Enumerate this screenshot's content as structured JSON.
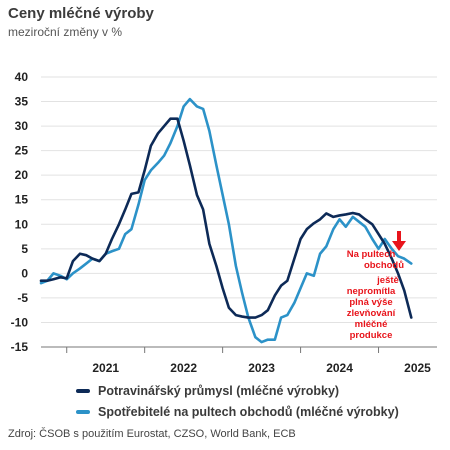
{
  "title": "Ceny mléčné výroby",
  "subtitle": "meziroční změny v %",
  "source": "Zdroj: ČSOB s použitím Eurostat, CZSO, World Bank, ECB",
  "annotation": [
    "Na pultech",
    "obchodů",
    "ještě",
    "nepromítla",
    "plná výše",
    "zlevňování",
    "mléčné",
    "produkce"
  ],
  "colors": {
    "series1": "#0d2a57",
    "series2": "#2c92c8",
    "annotation": "#e8141b"
  },
  "chart_data": {
    "type": "line",
    "ylim": [
      -15,
      40
    ],
    "yticks": [
      "-15",
      "-10",
      "-5",
      "0",
      "5",
      "10",
      "15",
      "20",
      "25",
      "30",
      "35",
      "40"
    ],
    "xtick_labels": [
      "2021",
      "2022",
      "2023",
      "2024",
      "2025"
    ],
    "x_unit": "year",
    "xlim": [
      2020.67,
      2025.75
    ],
    "grid": "horizontal",
    "legend_position": "bottom",
    "series": [
      {
        "name": "Potravinářský průmysl (mléčné výrobky)",
        "color": "#0d2a57",
        "points": [
          [
            2020.67,
            -1.5
          ],
          [
            2020.75,
            -1.5
          ],
          [
            2020.83,
            -1.2
          ],
          [
            2020.92,
            -0.8
          ],
          [
            2021.0,
            -1.0
          ],
          [
            2021.08,
            2.5
          ],
          [
            2021.17,
            4.0
          ],
          [
            2021.25,
            3.7
          ],
          [
            2021.33,
            3.0
          ],
          [
            2021.42,
            2.5
          ],
          [
            2021.5,
            4.0
          ],
          [
            2021.58,
            7.0
          ],
          [
            2021.67,
            10.0
          ],
          [
            2021.75,
            13.0
          ],
          [
            2021.83,
            16.2
          ],
          [
            2021.92,
            16.5
          ],
          [
            2022.0,
            21.0
          ],
          [
            2022.08,
            26.0
          ],
          [
            2022.17,
            28.5
          ],
          [
            2022.25,
            30.0
          ],
          [
            2022.33,
            31.5
          ],
          [
            2022.42,
            31.5
          ],
          [
            2022.5,
            27.0
          ],
          [
            2022.58,
            22.0
          ],
          [
            2022.67,
            16.0
          ],
          [
            2022.75,
            13.0
          ],
          [
            2022.83,
            6.0
          ],
          [
            2022.92,
            1.5
          ],
          [
            2023.0,
            -3.0
          ],
          [
            2023.08,
            -7.0
          ],
          [
            2023.17,
            -8.5
          ],
          [
            2023.25,
            -8.8
          ],
          [
            2023.33,
            -9.0
          ],
          [
            2023.42,
            -9.0
          ],
          [
            2023.5,
            -8.5
          ],
          [
            2023.58,
            -7.5
          ],
          [
            2023.67,
            -4.5
          ],
          [
            2023.75,
            -2.5
          ],
          [
            2023.83,
            -1.5
          ],
          [
            2023.92,
            3.0
          ],
          [
            2024.0,
            7.0
          ],
          [
            2024.08,
            9.0
          ],
          [
            2024.17,
            10.2
          ],
          [
            2024.25,
            11.0
          ],
          [
            2024.33,
            12.2
          ],
          [
            2024.42,
            11.5
          ],
          [
            2024.5,
            11.8
          ],
          [
            2024.58,
            12.0
          ],
          [
            2024.67,
            12.3
          ],
          [
            2024.75,
            12.0
          ],
          [
            2024.83,
            11.0
          ],
          [
            2024.92,
            10.0
          ],
          [
            2025.0,
            8.0
          ],
          [
            2025.08,
            6.0
          ],
          [
            2025.17,
            3.0
          ],
          [
            2025.25,
            0.0
          ],
          [
            2025.33,
            -3.5
          ],
          [
            2025.42,
            -9.0
          ]
        ]
      },
      {
        "name": "Spotřebitelé na pultech obchodů (mléčné výrobky)",
        "color": "#2c92c8",
        "points": [
          [
            2020.67,
            -2.0
          ],
          [
            2020.75,
            -1.5
          ],
          [
            2020.83,
            0.0
          ],
          [
            2020.92,
            -0.5
          ],
          [
            2021.0,
            -1.2
          ],
          [
            2021.08,
            0.0
          ],
          [
            2021.17,
            1.0
          ],
          [
            2021.25,
            2.0
          ],
          [
            2021.33,
            3.0
          ],
          [
            2021.42,
            2.5
          ],
          [
            2021.5,
            4.0
          ],
          [
            2021.58,
            4.5
          ],
          [
            2021.67,
            5.0
          ],
          [
            2021.75,
            8.0
          ],
          [
            2021.83,
            9.0
          ],
          [
            2021.92,
            14.0
          ],
          [
            2022.0,
            19.0
          ],
          [
            2022.08,
            21.0
          ],
          [
            2022.17,
            22.5
          ],
          [
            2022.25,
            24.0
          ],
          [
            2022.33,
            26.5
          ],
          [
            2022.42,
            30.0
          ],
          [
            2022.5,
            34.0
          ],
          [
            2022.58,
            35.5
          ],
          [
            2022.67,
            34.0
          ],
          [
            2022.75,
            33.5
          ],
          [
            2022.83,
            29.0
          ],
          [
            2022.92,
            22.0
          ],
          [
            2023.0,
            16.0
          ],
          [
            2023.08,
            10.0
          ],
          [
            2023.17,
            1.5
          ],
          [
            2023.25,
            -4.0
          ],
          [
            2023.33,
            -9.0
          ],
          [
            2023.42,
            -13.0
          ],
          [
            2023.5,
            -14.0
          ],
          [
            2023.58,
            -13.5
          ],
          [
            2023.67,
            -13.5
          ],
          [
            2023.75,
            -9.0
          ],
          [
            2023.83,
            -8.5
          ],
          [
            2023.92,
            -6.0
          ],
          [
            2024.0,
            -3.0
          ],
          [
            2024.08,
            0.0
          ],
          [
            2024.17,
            -0.5
          ],
          [
            2024.25,
            4.0
          ],
          [
            2024.33,
            5.5
          ],
          [
            2024.42,
            9.0
          ],
          [
            2024.5,
            11.0
          ],
          [
            2024.58,
            9.5
          ],
          [
            2024.67,
            11.5
          ],
          [
            2024.75,
            10.5
          ],
          [
            2024.83,
            9.5
          ],
          [
            2024.92,
            7.0
          ],
          [
            2025.0,
            5.0
          ],
          [
            2025.08,
            7.0
          ],
          [
            2025.17,
            5.0
          ],
          [
            2025.25,
            3.5
          ],
          [
            2025.33,
            3.0
          ],
          [
            2025.42,
            2.0
          ]
        ]
      }
    ]
  }
}
